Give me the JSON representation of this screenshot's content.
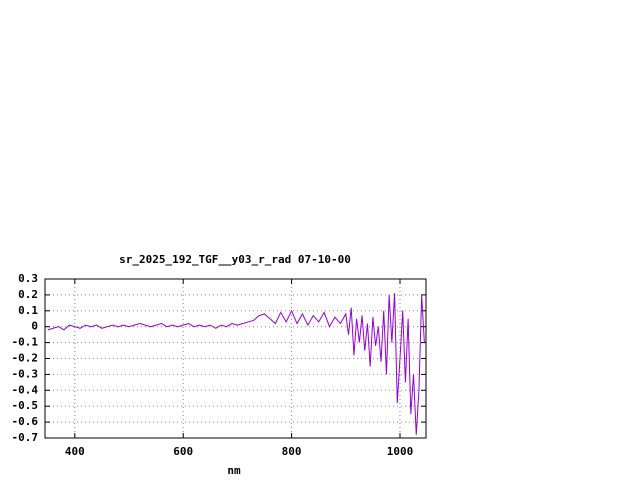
{
  "chart_data": {
    "type": "line",
    "title": "sr_2025_192_TGF__y03_r_rad 07-10-00",
    "x_label": "nm",
    "color": "#9400d3",
    "grid": true,
    "xlim": [
      345,
      1048
    ],
    "xticks": [
      400,
      600,
      800,
      1000
    ],
    "ylim": [
      -0.7,
      0.3
    ],
    "yticks": [
      0.3,
      0.2,
      0.1,
      0,
      -0.1,
      -0.2,
      -0.3,
      -0.4,
      -0.5,
      -0.6,
      -0.7
    ],
    "x": [
      350,
      360,
      370,
      380,
      390,
      400,
      410,
      420,
      430,
      440,
      450,
      460,
      470,
      480,
      490,
      500,
      510,
      520,
      530,
      540,
      550,
      560,
      570,
      580,
      590,
      600,
      610,
      620,
      630,
      640,
      650,
      660,
      670,
      680,
      690,
      700,
      710,
      720,
      730,
      740,
      750,
      760,
      770,
      780,
      790,
      800,
      810,
      820,
      830,
      840,
      850,
      860,
      870,
      880,
      890,
      900,
      905,
      910,
      915,
      920,
      925,
      930,
      935,
      940,
      945,
      950,
      955,
      960,
      965,
      970,
      975,
      980,
      985,
      990,
      995,
      1000,
      1005,
      1010,
      1015,
      1020,
      1025,
      1030,
      1035,
      1040,
      1045
    ],
    "values": [
      -0.02,
      -0.01,
      0.0,
      -0.02,
      0.01,
      0.0,
      -0.01,
      0.01,
      0.0,
      0.01,
      -0.01,
      0.0,
      0.01,
      0.0,
      0.01,
      0.0,
      0.01,
      0.02,
      0.01,
      0.0,
      0.01,
      0.02,
      0.0,
      0.01,
      0.0,
      0.01,
      0.02,
      0.0,
      0.01,
      0.0,
      0.01,
      -0.01,
      0.01,
      0.0,
      0.02,
      0.01,
      0.02,
      0.03,
      0.04,
      0.07,
      0.08,
      0.05,
      0.02,
      0.09,
      0.03,
      0.1,
      0.02,
      0.08,
      0.01,
      0.07,
      0.03,
      0.09,
      0.0,
      0.06,
      0.02,
      0.08,
      -0.05,
      0.12,
      -0.18,
      0.05,
      -0.1,
      0.07,
      -0.15,
      0.02,
      -0.25,
      0.06,
      -0.12,
      0.0,
      -0.22,
      0.1,
      -0.3,
      0.2,
      -0.1,
      0.21,
      -0.48,
      -0.2,
      0.1,
      -0.35,
      0.05,
      -0.55,
      -0.3,
      -0.68,
      -0.4,
      0.2,
      -0.1
    ]
  }
}
